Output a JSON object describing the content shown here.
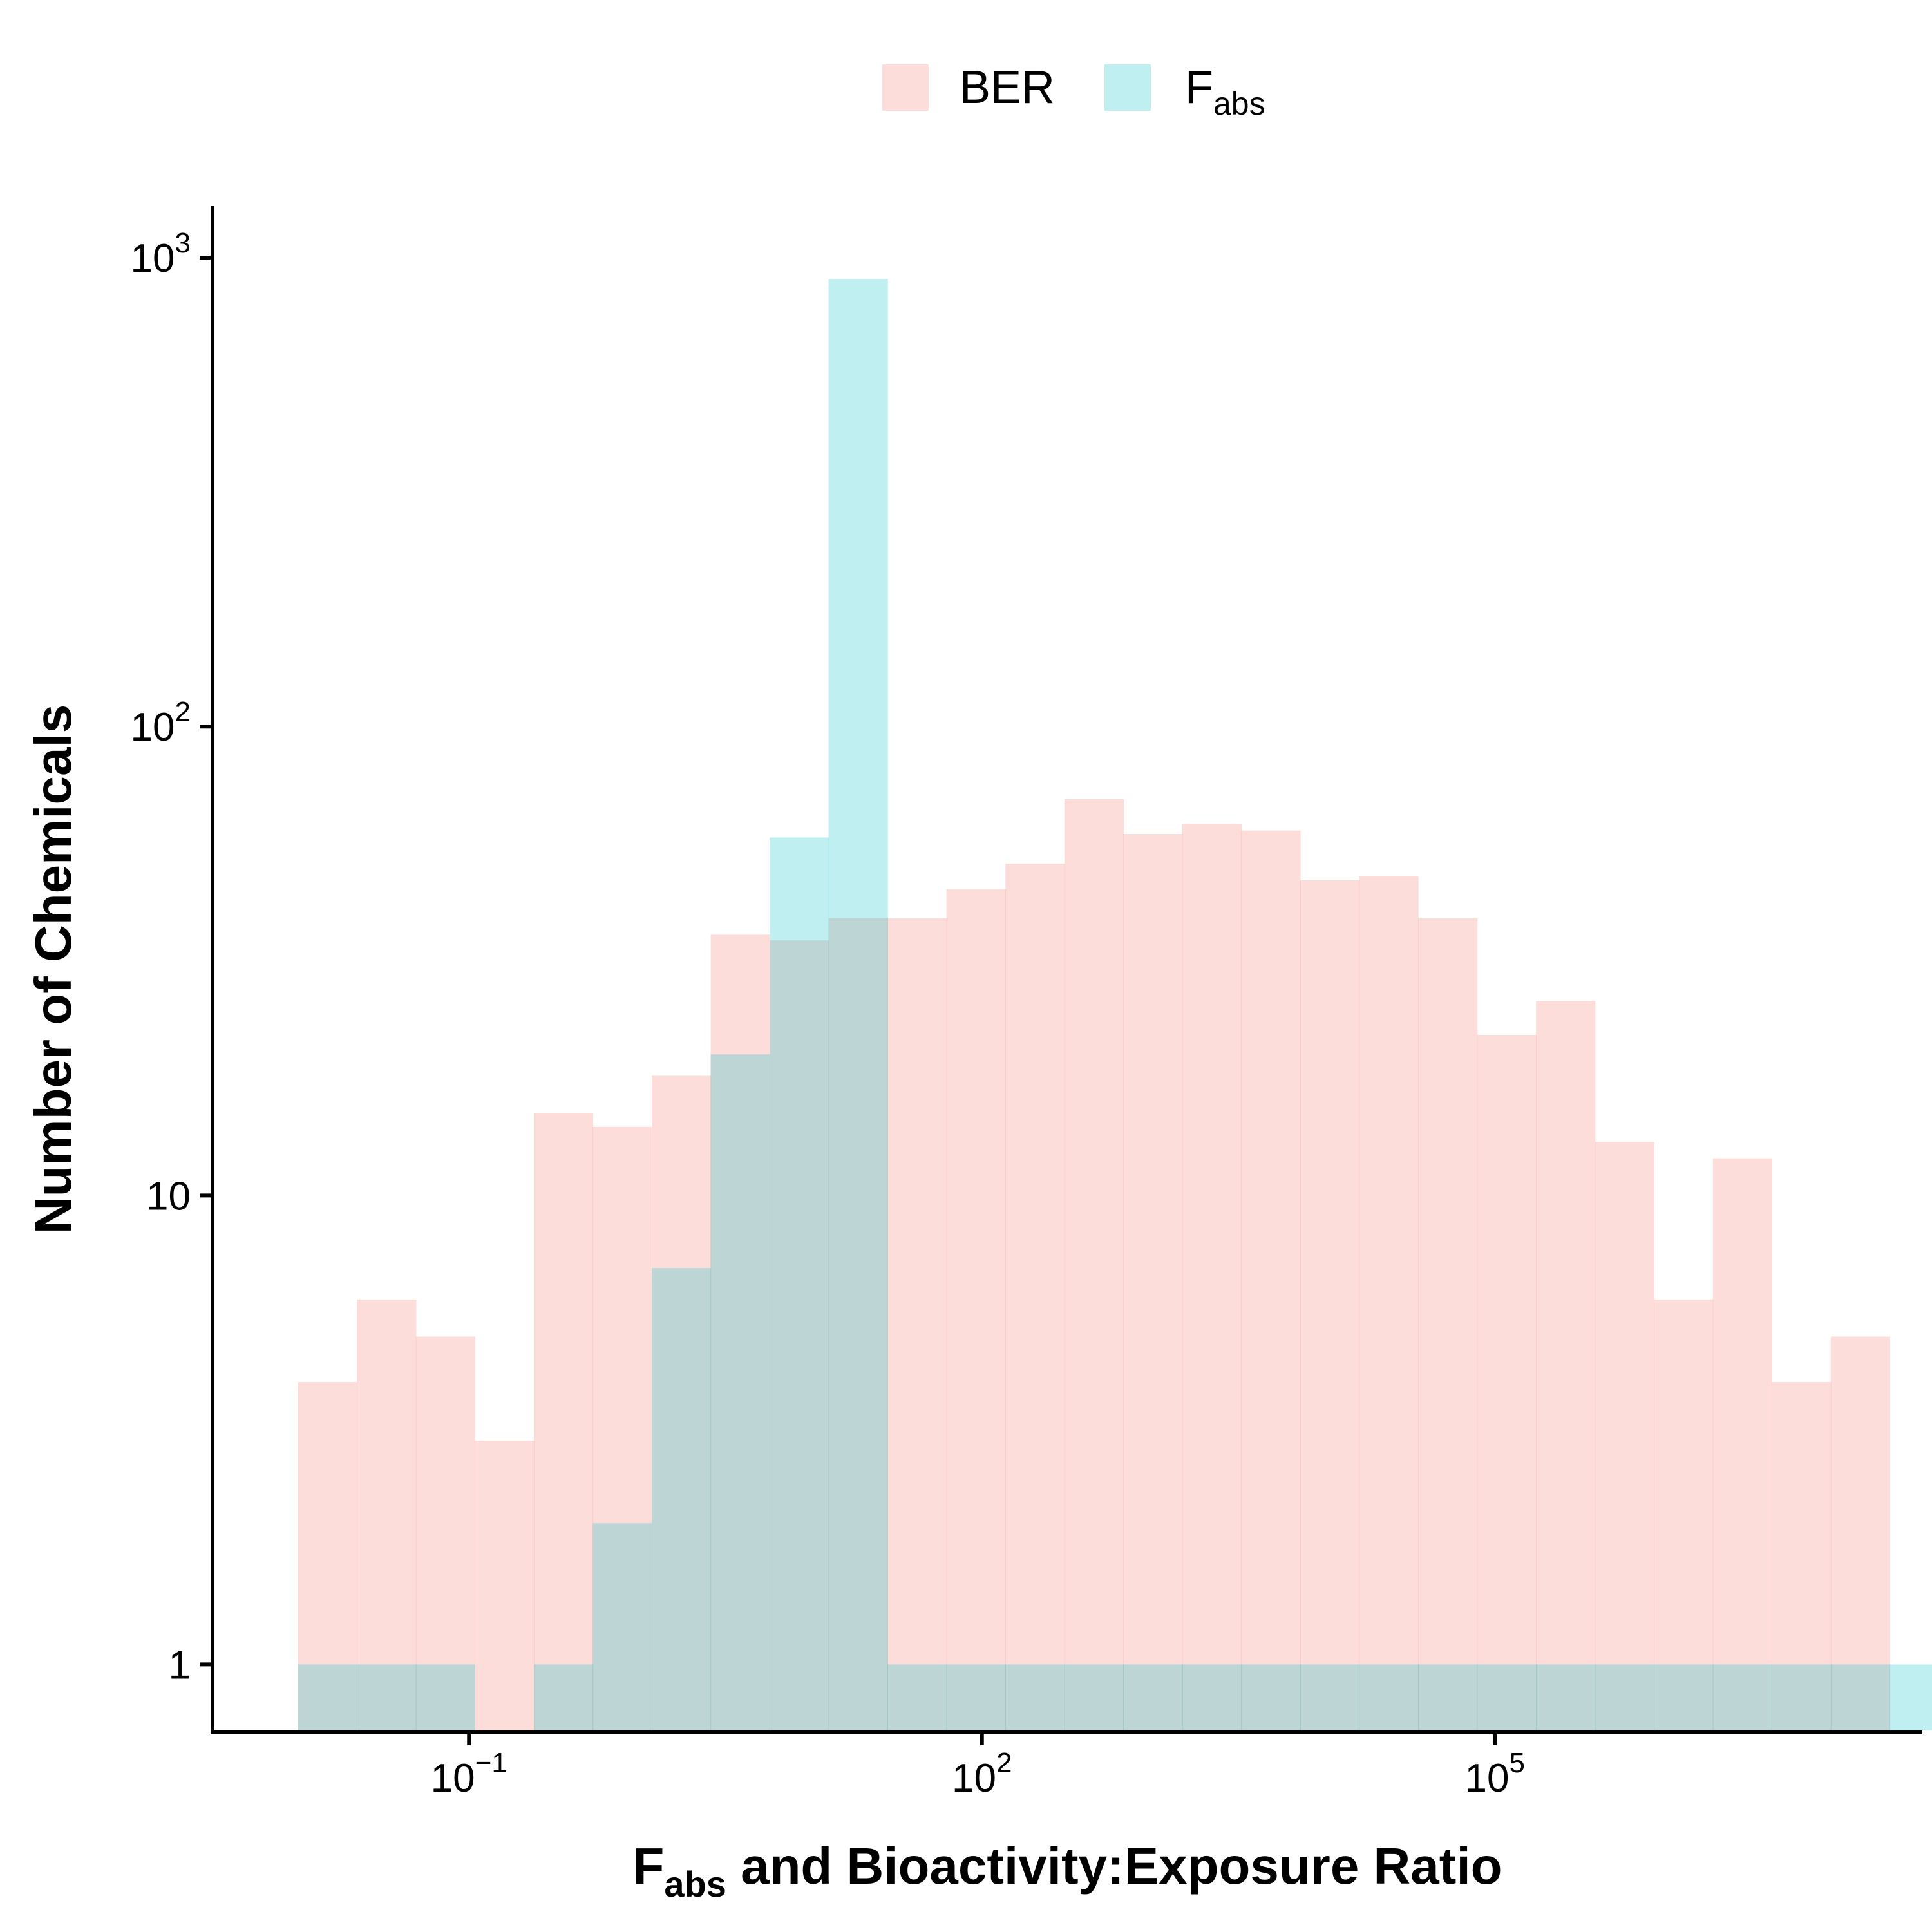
{
  "chart_data": {
    "type": "bar",
    "subtype": "overlaid-histogram",
    "title": "",
    "x_scale": "log10",
    "y_scale": "log10",
    "xlabel": {
      "main": "F",
      "sub": "abs",
      "rest": " and Bioactivity:Exposure Ratio"
    },
    "ylabel": "Number of Chemicals",
    "x_log10_range": [
      -2.5,
      7.5
    ],
    "y_log10_range": [
      -0.145,
      3.11
    ],
    "grid": false,
    "legend_position": "top",
    "bin_width_log10": 0.3448,
    "first_bin_start_log10": -2.0,
    "x_ticks": [
      {
        "value": 0.1,
        "base": "10",
        "exp": "−1"
      },
      {
        "value": 100,
        "base": "10",
        "exp": "2"
      },
      {
        "value": 100000,
        "base": "10",
        "exp": "5"
      }
    ],
    "y_ticks": [
      {
        "value": 1,
        "base": "1",
        "exp": ""
      },
      {
        "value": 10,
        "base": "10",
        "exp": ""
      },
      {
        "value": 100,
        "base": "10",
        "exp": "2"
      },
      {
        "value": 1000,
        "base": "10",
        "exp": "3"
      }
    ],
    "series": [
      {
        "name": "BER",
        "color": "#F8766D",
        "counts": [
          4,
          6,
          5,
          3,
          15,
          14,
          18,
          36,
          35,
          39,
          39,
          45,
          51,
          70,
          59,
          62,
          60,
          47,
          48,
          39,
          22,
          26,
          13,
          6,
          12,
          4,
          5,
          0
        ]
      },
      {
        "name": "F",
        "name_sub": "abs",
        "color": "#00BFC4",
        "counts": [
          1,
          1,
          1,
          0,
          1,
          2,
          7,
          20,
          58,
          900,
          1,
          1,
          1,
          1,
          1,
          1,
          1,
          1,
          1,
          1,
          1,
          1,
          1,
          1,
          1,
          1,
          1,
          1
        ]
      }
    ]
  }
}
